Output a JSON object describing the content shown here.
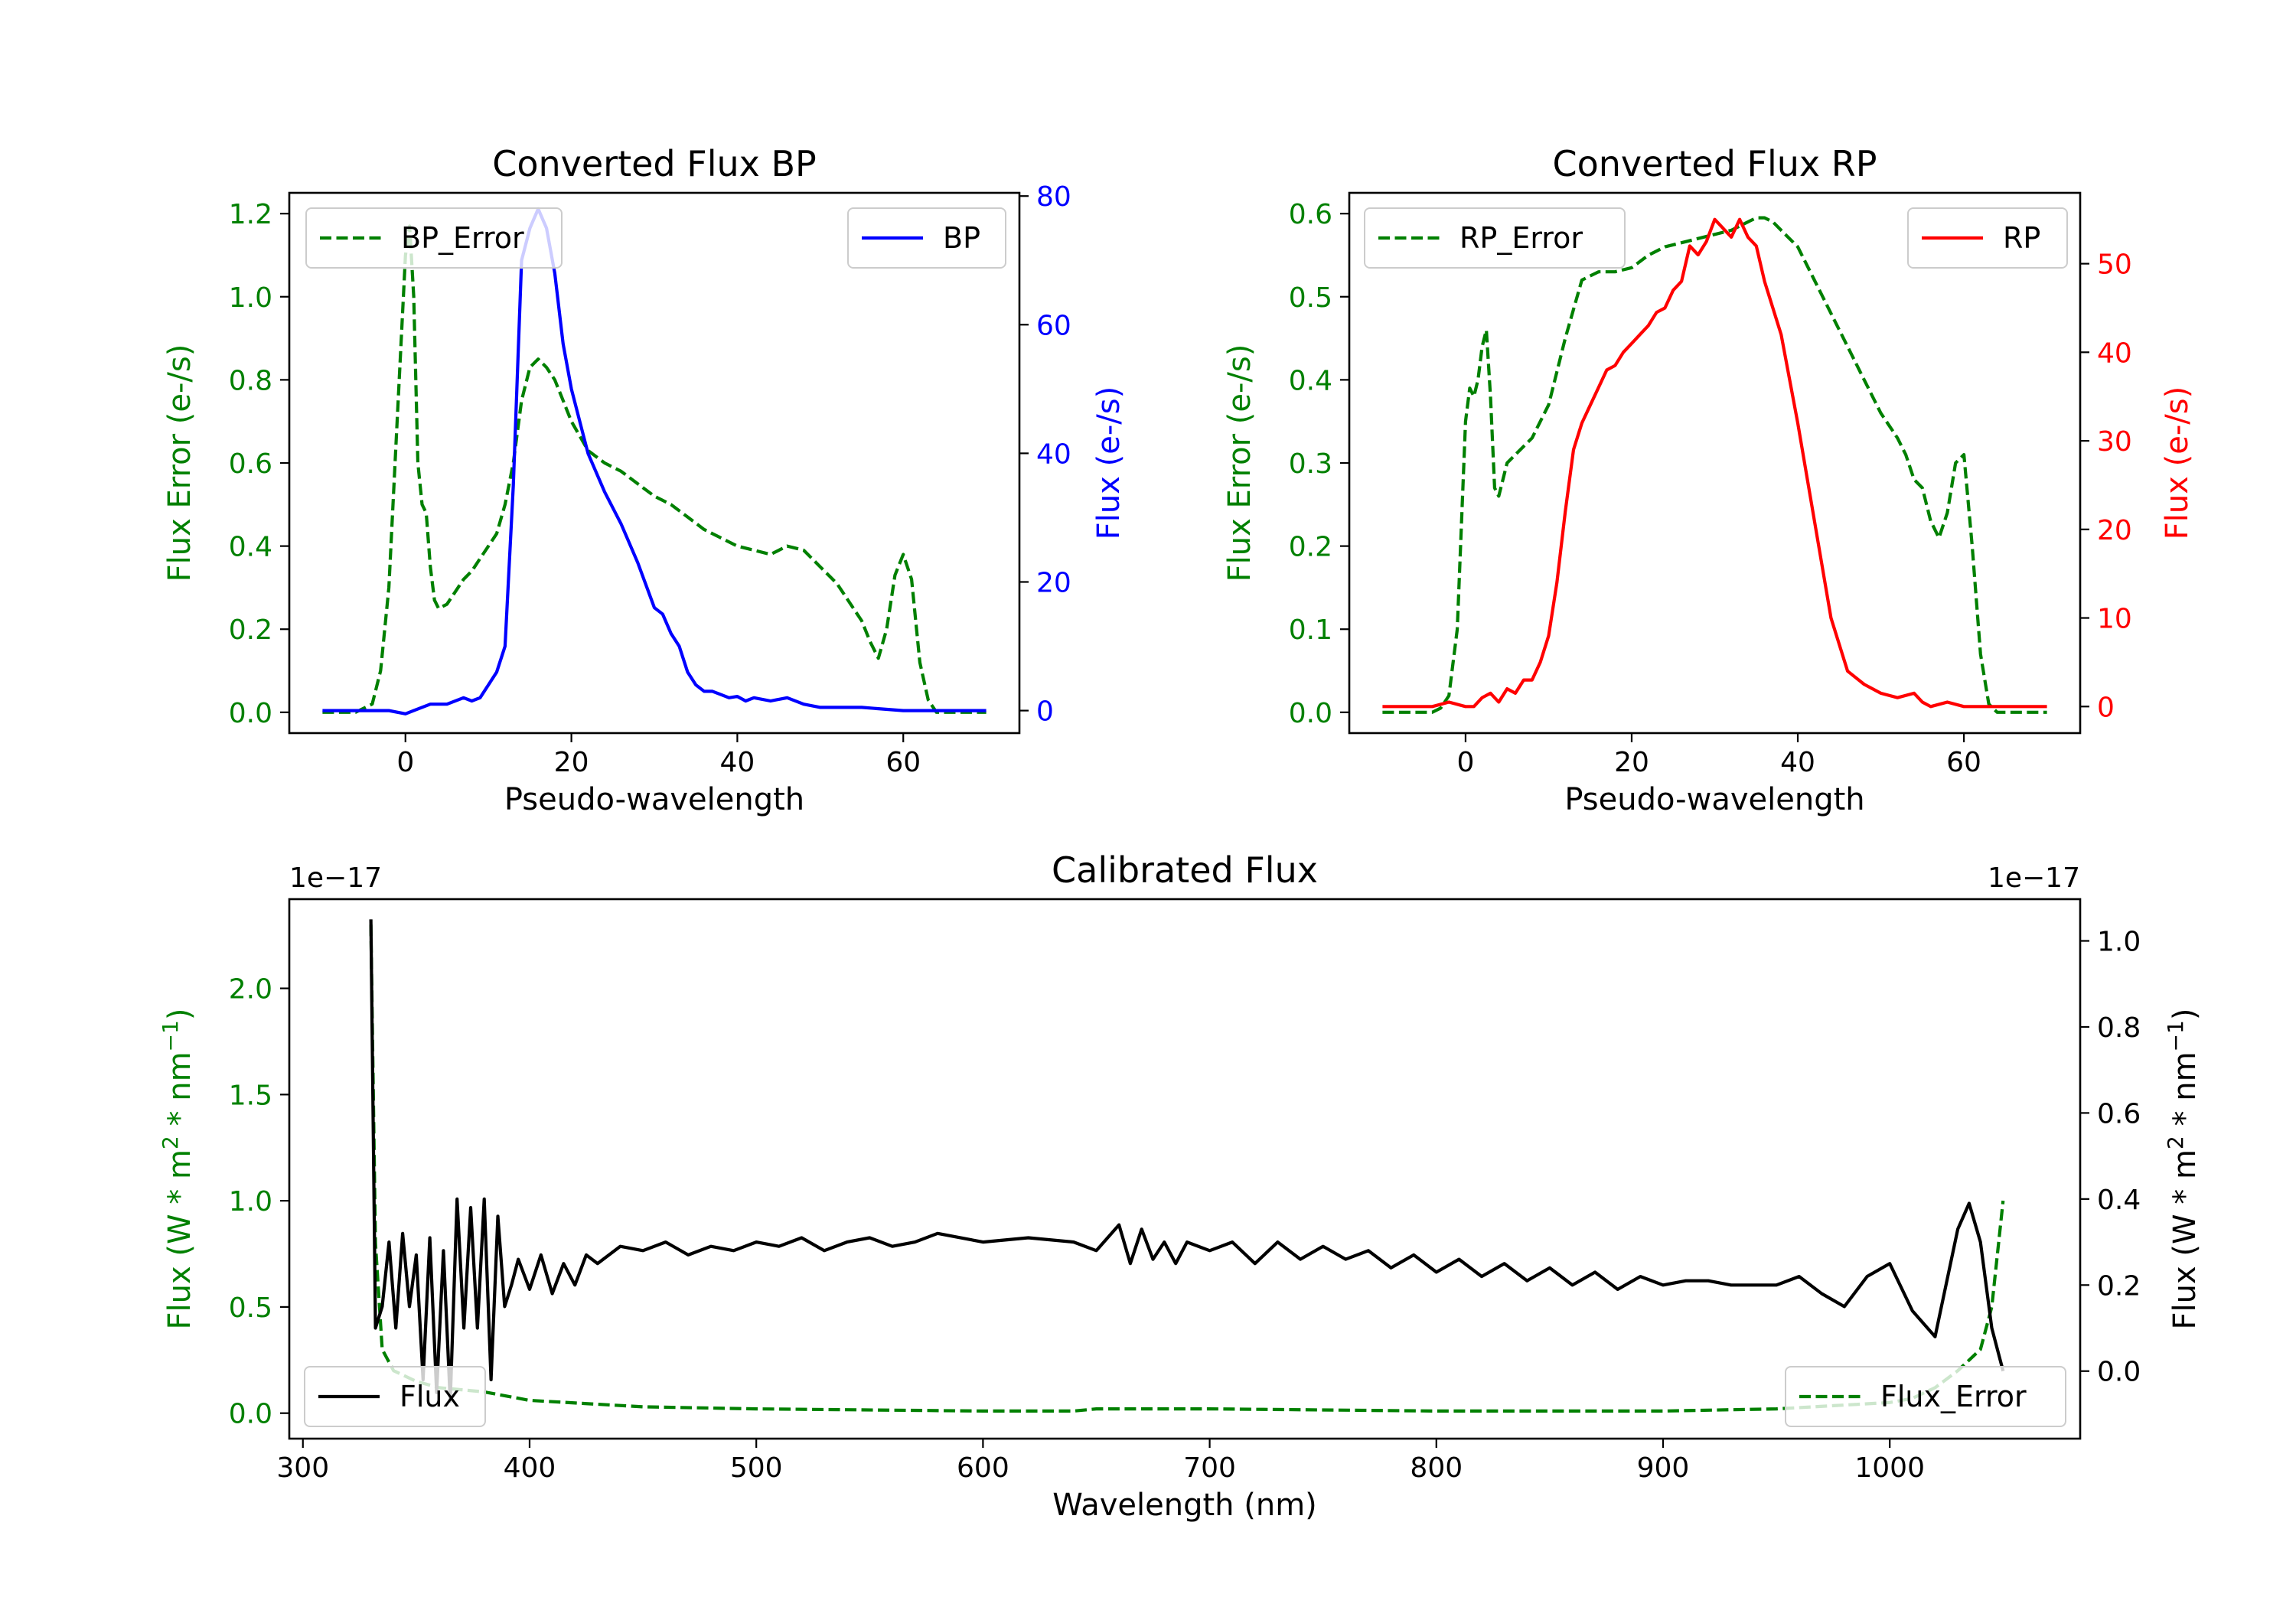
{
  "chart_data": [
    {
      "type": "line",
      "title": "Converted Flux BP",
      "xlabel": "Pseudo-wavelength",
      "ylabel": "Flux Error (e-/s)",
      "ylabel_right": "Flux (e-/s)",
      "xlim": [
        -14,
        74
      ],
      "ylim": [
        -0.05,
        1.25
      ],
      "ylim_right": [
        -3.5,
        80.5
      ],
      "xticks": [
        "0",
        "20",
        "40",
        "60"
      ],
      "yticks": [
        "0.0",
        "0.2",
        "0.4",
        "0.6",
        "0.8",
        "1.0",
        "1.2"
      ],
      "yticks_right": [
        "0",
        "20",
        "40",
        "60",
        "80"
      ],
      "legend_left": "top-left",
      "legend_right": "top-right",
      "series": [
        {
          "name": "BP_Error",
          "axis": "left",
          "color": "#008000",
          "style": "dashed",
          "x": [
            -10,
            -6,
            -4,
            -3,
            -2,
            -1,
            0,
            0.5,
            1,
            1.5,
            2,
            2.5,
            3,
            3.5,
            4,
            5,
            6,
            7,
            8,
            9,
            10,
            11,
            12,
            13,
            14,
            15,
            16,
            17,
            18,
            19,
            20,
            22,
            24,
            26,
            28,
            30,
            32,
            34,
            36,
            38,
            40,
            42,
            44,
            46,
            48,
            50,
            52,
            54,
            55,
            56,
            57,
            58,
            59,
            60,
            61,
            62,
            63,
            64,
            66,
            68,
            70
          ],
          "y": [
            0.0,
            0.0,
            0.02,
            0.1,
            0.3,
            0.7,
            1.1,
            1.17,
            1.0,
            0.6,
            0.5,
            0.48,
            0.35,
            0.27,
            0.25,
            0.26,
            0.29,
            0.32,
            0.34,
            0.37,
            0.4,
            0.43,
            0.5,
            0.6,
            0.75,
            0.83,
            0.85,
            0.83,
            0.8,
            0.75,
            0.7,
            0.63,
            0.6,
            0.58,
            0.55,
            0.52,
            0.5,
            0.47,
            0.44,
            0.42,
            0.4,
            0.39,
            0.38,
            0.4,
            0.39,
            0.35,
            0.31,
            0.25,
            0.22,
            0.17,
            0.13,
            0.2,
            0.33,
            0.38,
            0.32,
            0.12,
            0.03,
            0.0,
            0.0,
            0.0,
            0.0
          ]
        },
        {
          "name": "BP",
          "axis": "right",
          "color": "#0000ff",
          "style": "solid",
          "x": [
            -10,
            -2,
            0,
            1,
            3,
            5,
            7,
            8,
            9,
            10,
            11,
            12,
            13,
            14,
            15,
            16,
            17,
            18,
            19,
            20,
            22,
            24,
            26,
            28,
            30,
            31,
            32,
            33,
            34,
            35,
            36,
            37,
            38,
            39,
            40,
            41,
            42,
            44,
            46,
            48,
            50,
            55,
            60,
            65,
            70
          ],
          "y": [
            0.0,
            0.0,
            -0.5,
            0.0,
            1.0,
            1.0,
            2.0,
            1.5,
            2.0,
            4.0,
            6.0,
            10.0,
            35.0,
            70.0,
            75.0,
            78.0,
            75.0,
            68.0,
            57.0,
            50.0,
            40.0,
            34.0,
            29.0,
            23.0,
            16.0,
            15.0,
            12.0,
            10.0,
            6.0,
            4.0,
            3.0,
            3.0,
            2.5,
            2.0,
            2.2,
            1.5,
            2.0,
            1.5,
            2.0,
            1.0,
            0.5,
            0.5,
            0.0,
            0.0,
            0.0
          ]
        }
      ]
    },
    {
      "type": "line",
      "title": "Converted Flux RP",
      "xlabel": "Pseudo-wavelength",
      "ylabel": "Flux Error (e-/s)",
      "ylabel_right": "Flux (e-/s)",
      "xlim": [
        -14,
        74
      ],
      "ylim": [
        -0.025,
        0.625
      ],
      "ylim_right": [
        -3,
        58
      ],
      "xticks": [
        "0",
        "20",
        "40",
        "60"
      ],
      "yticks": [
        "0.0",
        "0.1",
        "0.2",
        "0.3",
        "0.4",
        "0.5",
        "0.6"
      ],
      "yticks_right": [
        "0",
        "10",
        "20",
        "30",
        "40",
        "50"
      ],
      "legend_left": "top-left",
      "legend_right": "top-right",
      "series": [
        {
          "name": "RP_Error",
          "axis": "left",
          "color": "#008000",
          "style": "dashed",
          "x": [
            -10,
            -5,
            -4,
            -3,
            -2,
            -1,
            0,
            0.5,
            1,
            1.5,
            2,
            2.5,
            3,
            3.5,
            4,
            5,
            6,
            8,
            10,
            12,
            14,
            16,
            18,
            20,
            22,
            24,
            26,
            28,
            30,
            32,
            34,
            35,
            36,
            37,
            38,
            40,
            42,
            44,
            46,
            48,
            50,
            52,
            53,
            54,
            55,
            56,
            57,
            58,
            59,
            60,
            61,
            62,
            63,
            64,
            66,
            68,
            70
          ],
          "y": [
            0.0,
            0.0,
            0.0,
            0.005,
            0.02,
            0.1,
            0.35,
            0.39,
            0.38,
            0.4,
            0.44,
            0.46,
            0.38,
            0.27,
            0.26,
            0.3,
            0.31,
            0.33,
            0.37,
            0.45,
            0.52,
            0.53,
            0.53,
            0.535,
            0.55,
            0.56,
            0.565,
            0.57,
            0.575,
            0.58,
            0.59,
            0.595,
            0.595,
            0.59,
            0.58,
            0.56,
            0.52,
            0.48,
            0.44,
            0.4,
            0.36,
            0.33,
            0.31,
            0.28,
            0.27,
            0.23,
            0.21,
            0.24,
            0.3,
            0.31,
            0.2,
            0.07,
            0.01,
            0.0,
            0.0,
            0.0,
            0.0
          ]
        },
        {
          "name": "RP",
          "axis": "right",
          "color": "#ff0000",
          "style": "solid",
          "x": [
            -10,
            -4,
            -2,
            0,
            1,
            2,
            3,
            4,
            5,
            6,
            7,
            8,
            9,
            10,
            11,
            12,
            13,
            14,
            15,
            16,
            17,
            18,
            19,
            20,
            21,
            22,
            23,
            24,
            25,
            26,
            27,
            28,
            29,
            30,
            31,
            32,
            33,
            34,
            35,
            36,
            38,
            40,
            42,
            44,
            46,
            48,
            50,
            52,
            54,
            55,
            56,
            58,
            60,
            62,
            65,
            70
          ],
          "y": [
            0.0,
            0.0,
            0.5,
            0.0,
            0.0,
            1.0,
            1.5,
            0.5,
            2.0,
            1.5,
            3.0,
            3.0,
            5.0,
            8.0,
            14.0,
            22.0,
            29.0,
            32.0,
            34.0,
            36.0,
            38.0,
            38.5,
            40.0,
            41.0,
            42.0,
            43.0,
            44.5,
            45.0,
            47.0,
            48.0,
            52.0,
            51.0,
            52.5,
            55.0,
            54.0,
            53.0,
            55.0,
            53.0,
            52.0,
            48.0,
            42.0,
            32.0,
            21.0,
            10.0,
            4.0,
            2.5,
            1.5,
            1.0,
            1.5,
            0.5,
            0.0,
            0.5,
            0.0,
            0.0,
            0.0,
            0.0
          ]
        }
      ]
    },
    {
      "type": "line",
      "title": "Calibrated Flux",
      "xlabel": "Wavelength (nm)",
      "ylabel_left_parts": [
        "Flux (W * m",
        "2",
        " * nm",
        "−1",
        ")"
      ],
      "ylabel_right_parts": [
        "Flux (W * m",
        "2",
        " * nm",
        "−1",
        ")"
      ],
      "offset_left": "1e−17",
      "offset_right": "1e−17",
      "xlim": [
        294,
        1084
      ],
      "ylim": [
        -0.12,
        2.42
      ],
      "ylim_right": [
        -0.157,
        1.097
      ],
      "xticks": [
        "300",
        "400",
        "500",
        "600",
        "700",
        "800",
        "900",
        "1000"
      ],
      "yticks": [
        "0.0",
        "0.5",
        "1.0",
        "1.5",
        "2.0"
      ],
      "yticks_right": [
        "0.0",
        "0.2",
        "0.4",
        "0.6",
        "0.8",
        "1.0"
      ],
      "legend_left": "bottom-left",
      "legend_right": "bottom-right",
      "series": [
        {
          "name": "Flux_Error",
          "axis": "left",
          "color": "#008000",
          "style": "dashed",
          "x": [
            330,
            332,
            335,
            340,
            350,
            360,
            380,
            400,
            450,
            500,
            600,
            640,
            650,
            700,
            800,
            900,
            950,
            1000,
            1010,
            1020,
            1030,
            1040,
            1045,
            1050
          ],
          "y": [
            2.3,
            0.8,
            0.3,
            0.2,
            0.15,
            0.12,
            0.1,
            0.06,
            0.03,
            0.02,
            0.01,
            0.01,
            0.02,
            0.02,
            0.01,
            0.01,
            0.02,
            0.05,
            0.07,
            0.12,
            0.2,
            0.3,
            0.5,
            1.0
          ]
        },
        {
          "name": "Flux",
          "axis": "right",
          "color": "#000000",
          "style": "solid",
          "x": [
            330,
            332,
            335,
            338,
            341,
            344,
            347,
            350,
            353,
            356,
            359,
            362,
            365,
            368,
            371,
            374,
            377,
            380,
            383,
            386,
            389,
            392,
            395,
            400,
            405,
            410,
            415,
            420,
            425,
            430,
            440,
            450,
            460,
            470,
            480,
            490,
            500,
            510,
            520,
            530,
            540,
            550,
            560,
            570,
            580,
            600,
            620,
            640,
            650,
            660,
            665,
            670,
            675,
            680,
            685,
            690,
            700,
            710,
            720,
            730,
            740,
            750,
            760,
            770,
            780,
            790,
            800,
            810,
            820,
            830,
            840,
            850,
            860,
            870,
            880,
            890,
            900,
            910,
            920,
            930,
            940,
            950,
            960,
            970,
            980,
            990,
            1000,
            1010,
            1020,
            1030,
            1035,
            1040,
            1045,
            1050
          ],
          "y": [
            1.05,
            0.1,
            0.15,
            0.3,
            0.1,
            0.32,
            0.15,
            0.27,
            -0.02,
            0.31,
            -0.05,
            0.28,
            -0.07,
            0.4,
            0.1,
            0.38,
            0.1,
            0.4,
            -0.02,
            0.36,
            0.15,
            0.2,
            0.26,
            0.19,
            0.27,
            0.18,
            0.25,
            0.2,
            0.27,
            0.25,
            0.29,
            0.28,
            0.3,
            0.27,
            0.29,
            0.28,
            0.3,
            0.29,
            0.31,
            0.28,
            0.3,
            0.31,
            0.29,
            0.3,
            0.32,
            0.3,
            0.31,
            0.3,
            0.28,
            0.34,
            0.25,
            0.33,
            0.26,
            0.3,
            0.25,
            0.3,
            0.28,
            0.3,
            0.25,
            0.3,
            0.26,
            0.29,
            0.26,
            0.28,
            0.24,
            0.27,
            0.23,
            0.26,
            0.22,
            0.25,
            0.21,
            0.24,
            0.2,
            0.23,
            0.19,
            0.22,
            0.2,
            0.21,
            0.21,
            0.2,
            0.2,
            0.2,
            0.22,
            0.18,
            0.15,
            0.22,
            0.25,
            0.14,
            0.08,
            0.33,
            0.39,
            0.3,
            0.1,
            0.0
          ]
        }
      ]
    }
  ]
}
